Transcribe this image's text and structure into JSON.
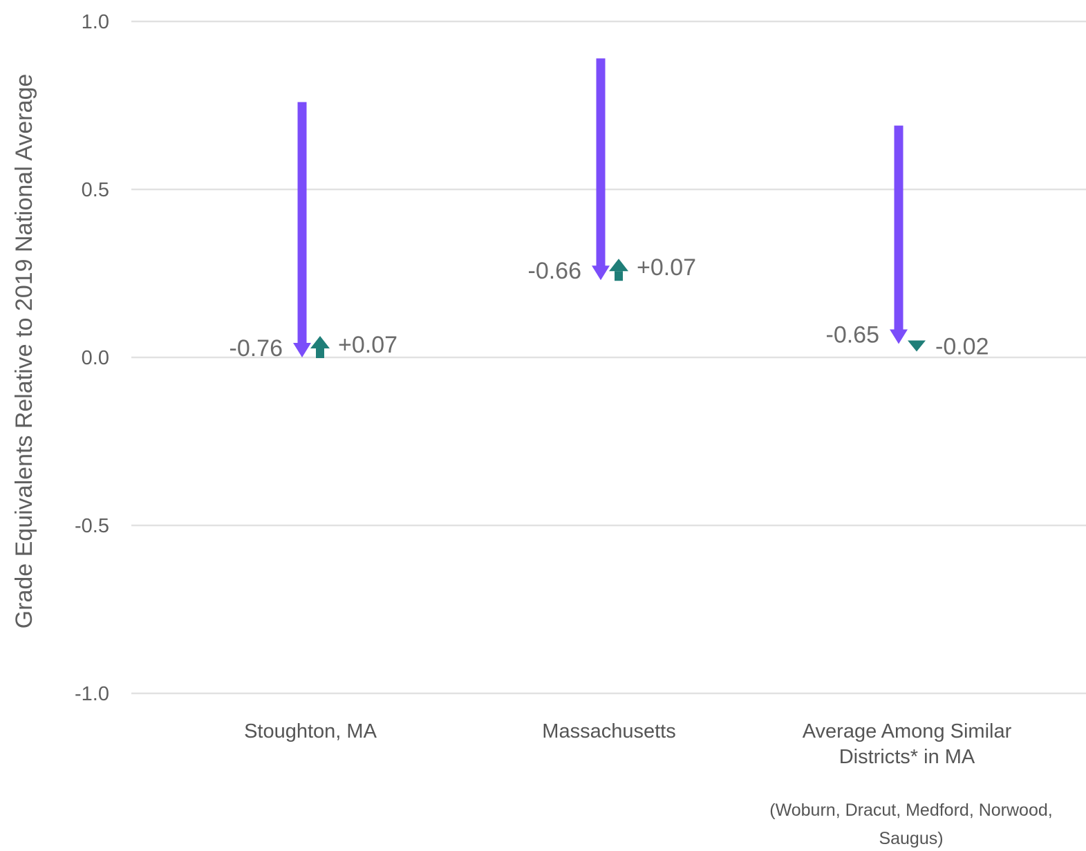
{
  "chart_data": {
    "type": "arrow",
    "ylabel": "Grade Equivalents Relative to 2019 National Average",
    "ylim": [
      -1.0,
      1.0
    ],
    "yticks": [
      1.0,
      0.5,
      0.0,
      -0.5,
      -1.0
    ],
    "ytick_labels": [
      "1.0",
      "0.5",
      "0.0",
      "-0.5",
      "-1.0"
    ],
    "grid": true,
    "categories": [
      {
        "label_lines": [
          "Stoughton, MA"
        ],
        "note_lines": [],
        "start": 0.76,
        "decline": -0.76,
        "decline_label": "-0.76",
        "recovery": 0.07,
        "recovery_label": "+0.07"
      },
      {
        "label_lines": [
          "Massachusetts"
        ],
        "note_lines": [],
        "start": 0.89,
        "decline": -0.66,
        "decline_label": "-0.66",
        "recovery": 0.07,
        "recovery_label": "+0.07"
      },
      {
        "label_lines": [
          "Average Among Similar",
          "Districts* in MA"
        ],
        "note_lines": [
          "(Woburn, Dracut, Medford, Norwood,",
          "Saugus)"
        ],
        "start": 0.69,
        "decline": -0.65,
        "decline_label": "-0.65",
        "recovery": -0.02,
        "recovery_label": "-0.02"
      }
    ],
    "colors": {
      "decline": "#7b4dfa",
      "recovery": "#1f7e78",
      "grid": "#e1e1e1",
      "text": "#5f5f5f"
    }
  }
}
